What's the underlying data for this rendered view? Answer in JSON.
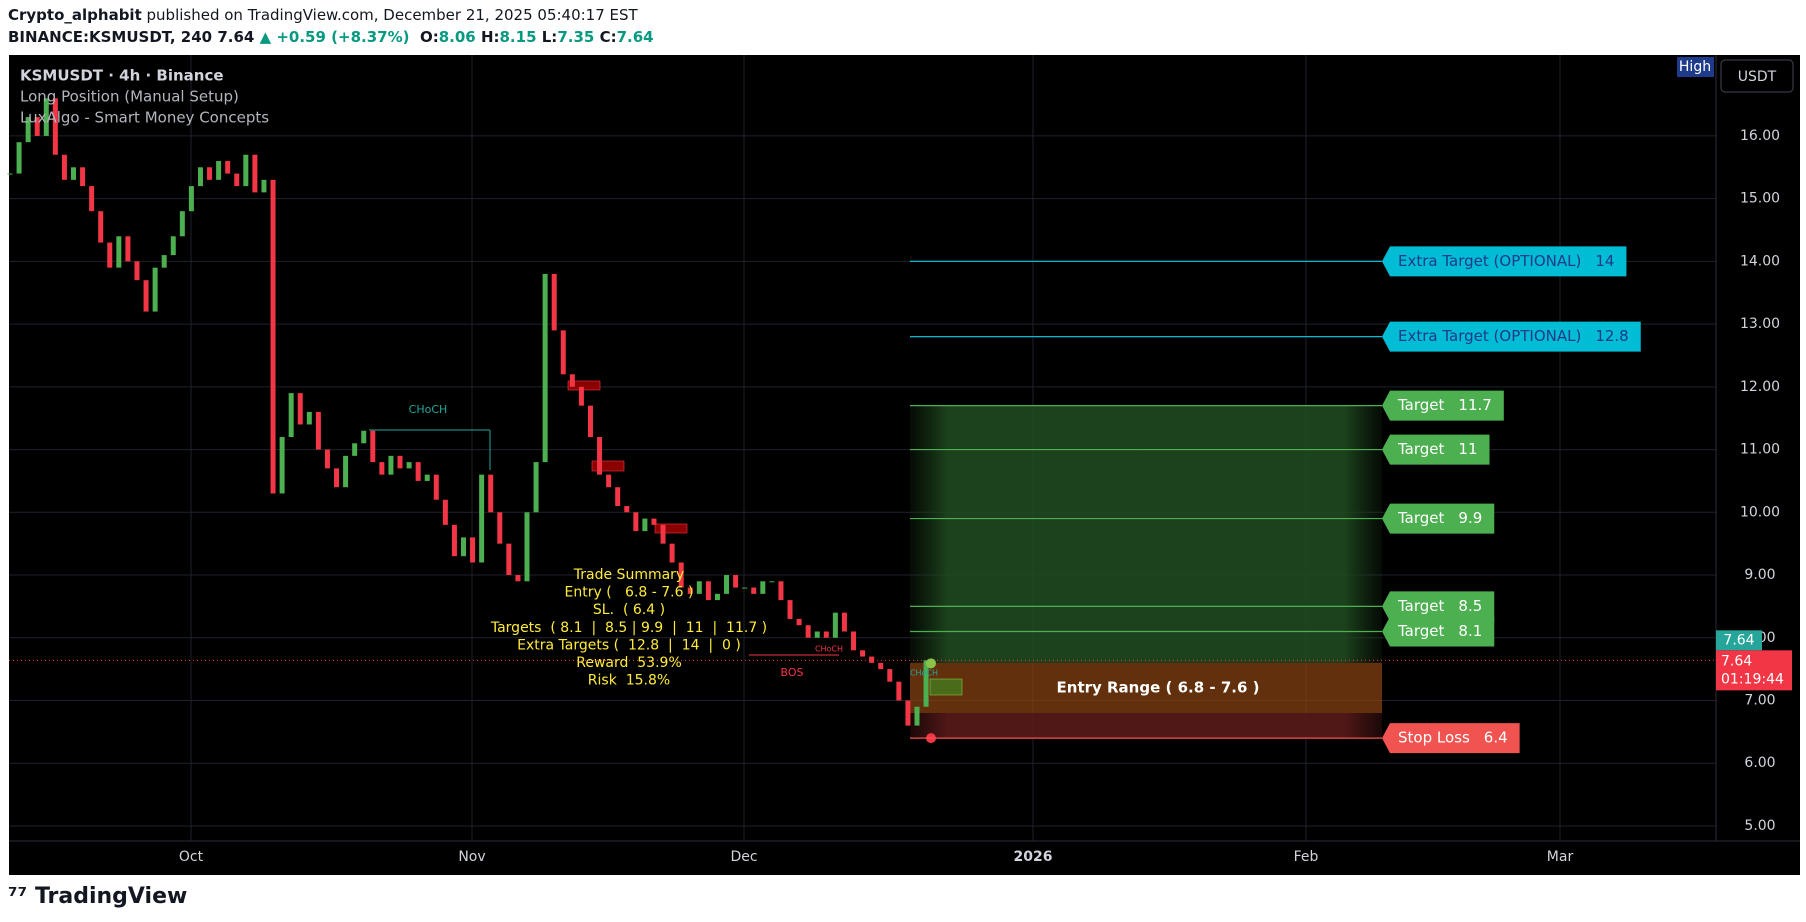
{
  "header": {
    "author": "Crypto_alphabit",
    "published": " published on TradingView.com, December 21, 2025 05:40:17 EST",
    "symbol": "BINANCE:KSMUSDT, 240",
    "last": "7.64",
    "change": "▲ +0.59 (+8.37%)",
    "ohlc": [
      {
        "label": "O:",
        "value": "8.06"
      },
      {
        "label": "H:",
        "value": "8.15"
      },
      {
        "label": "L:",
        "value": "7.35"
      },
      {
        "label": "C:",
        "value": "7.64"
      }
    ]
  },
  "legend": [
    "KSMUSDT · 4h · Binance",
    "Long Position (Manual Setup)",
    "LuxAlgo - Smart Money Concepts"
  ],
  "high_badge": "High",
  "currency": "USDT",
  "chart_data": {
    "type": "candlestick",
    "values": [
      15.4,
      15.9,
      16.3,
      16.0,
      16.6,
      15.7,
      15.3,
      15.5,
      15.2,
      14.8,
      14.3,
      13.9,
      14.4,
      14.0,
      13.7,
      13.2,
      13.9,
      14.1,
      14.4,
      14.8,
      15.2,
      15.5,
      15.3,
      15.6,
      15.4,
      15.2,
      15.7,
      15.1,
      15.3,
      10.3,
      11.2,
      11.9,
      11.4,
      11.6,
      11.0,
      10.7,
      10.4,
      10.9,
      11.1,
      11.3,
      10.8,
      10.6,
      10.9,
      10.7,
      10.8,
      10.5,
      10.6,
      10.2,
      9.8,
      9.3,
      9.6,
      9.2,
      10.6,
      10.0,
      9.5,
      9.0,
      8.9,
      10.0,
      10.8,
      13.8,
      12.9,
      12.2,
      12.0,
      11.7,
      11.2,
      10.6,
      10.4,
      10.1,
      10.0,
      9.7,
      9.9,
      9.8,
      9.5,
      9.2,
      8.8,
      8.7,
      8.9,
      8.6,
      8.7,
      9.0,
      8.8,
      8.8,
      8.7,
      8.9,
      8.9,
      8.6,
      8.3,
      8.2,
      8.0,
      8.1,
      8.0,
      8.4,
      8.1,
      7.8,
      7.7,
      7.6,
      7.5,
      7.3,
      7.0,
      6.6,
      6.9,
      7.64
    ],
    "up_color": "#4caf50",
    "down_color": "#f23645",
    "ylim": [
      4.76,
      17.29
    ],
    "yticks": [
      {
        "value": 5,
        "label": "5.00"
      },
      {
        "value": 6,
        "label": "6.00"
      },
      {
        "value": 7,
        "label": "7.00"
      },
      {
        "value": 8,
        "label": "8.00"
      },
      {
        "value": 9,
        "label": "9.00"
      },
      {
        "value": 10,
        "label": "10.00"
      },
      {
        "value": 11,
        "label": "11.00"
      },
      {
        "value": 12,
        "label": "12.00"
      },
      {
        "value": 13,
        "label": "13.00"
      },
      {
        "value": 14,
        "label": "14.00"
      },
      {
        "value": 15,
        "label": "15.00"
      },
      {
        "value": 16,
        "label": "16.00"
      }
    ],
    "xticks": [
      "Oct",
      "Nov",
      "Dec",
      "2026",
      "Feb",
      "Mar"
    ],
    "grid": true,
    "extra_targets": [
      {
        "label": "Extra Target (OPTIONAL)",
        "value": 14,
        "color": "#00bcd4"
      },
      {
        "label": "Extra Target (OPTIONAL)",
        "value": 12.8,
        "color": "#00bcd4"
      }
    ],
    "targets": [
      {
        "label": "Target",
        "value": 11.7,
        "color": "#4caf50"
      },
      {
        "label": "Target",
        "value": 11,
        "color": "#4caf50"
      },
      {
        "label": "Target",
        "value": 9.9,
        "color": "#4caf50"
      },
      {
        "label": "Target",
        "value": 8.5,
        "color": "#4caf50"
      },
      {
        "label": "Target",
        "value": 8.1,
        "color": "#4caf50"
      }
    ],
    "stop_loss": {
      "label": "Stop Loss",
      "value": 6.4,
      "color": "#f05350"
    },
    "entry": {
      "label": "Entry Range ( 6.8 - 7.6 )",
      "low": 6.8,
      "high": 7.6,
      "color": "#8b4513"
    },
    "current_price": {
      "value": 7.64,
      "label": "7.64",
      "countdown": "01:19:44"
    },
    "trade_summary": [
      "Trade Summary",
      "Entry (   6.8 - 7.6 )",
      "SL.  ( 6.4 )",
      "Targets  ( 8.1  |  8.5 | 9.9  |  11  |  11.7 )",
      "Extra Targets (  12.8  |  14  |  0 )",
      "Reward  53.9%",
      "Risk  15.8%"
    ],
    "annotations": [
      "CHoCH",
      "BOS",
      "CHoCH",
      "CHoCH"
    ]
  },
  "brand": "TradingView"
}
